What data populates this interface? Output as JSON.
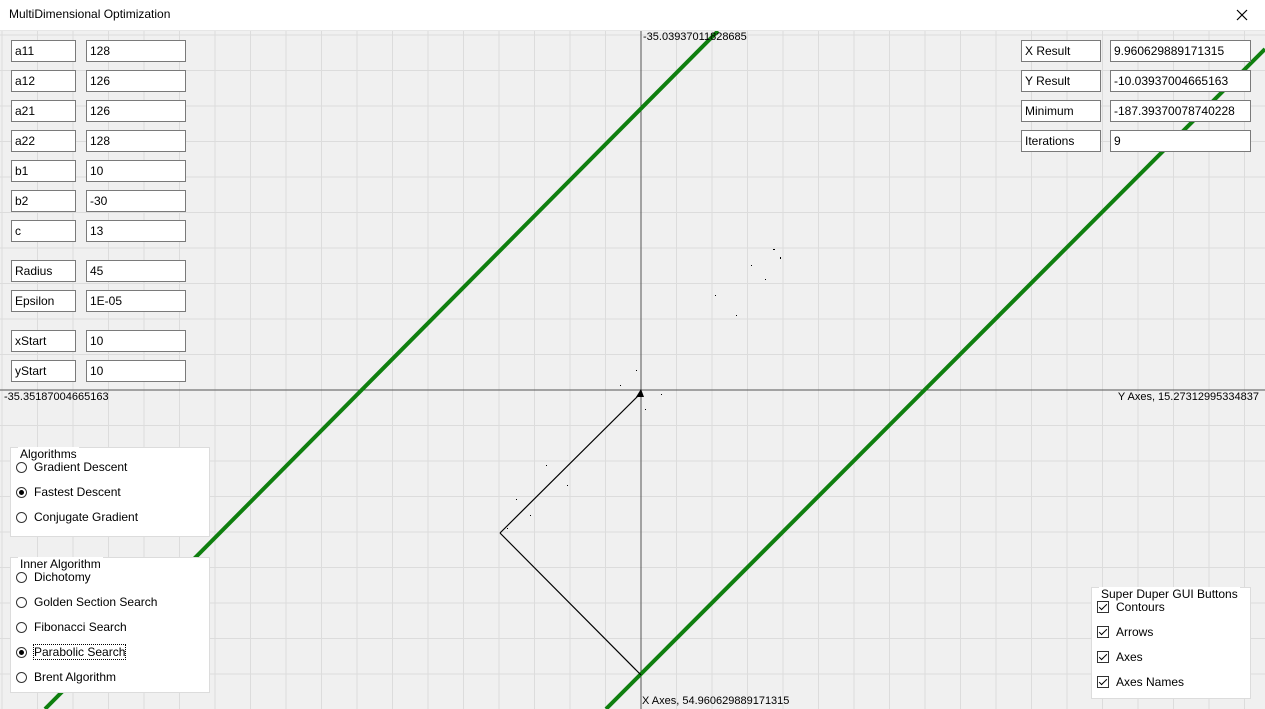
{
  "window": {
    "title": "MultiDimensional Optimization"
  },
  "axes": {
    "top_value": "-35.03937011828685",
    "left_value": "-35.35187004665163",
    "right_label": "Y Axes, 15.27312995334837",
    "bottom_label": "X Axes, 54.960629889171315"
  },
  "params": [
    {
      "label": "a11",
      "value": "128"
    },
    {
      "label": "a12",
      "value": "126"
    },
    {
      "label": "a21",
      "value": "126"
    },
    {
      "label": "a22",
      "value": "128"
    },
    {
      "label": "b1",
      "value": "10"
    },
    {
      "label": "b2",
      "value": "-30"
    },
    {
      "label": "c",
      "value": "13"
    },
    {
      "label": "Radius",
      "value": "45"
    },
    {
      "label": "Epsilon",
      "value": "1E-05"
    },
    {
      "label": "xStart",
      "value": "10"
    },
    {
      "label": "yStart",
      "value": "10"
    }
  ],
  "results": [
    {
      "label": "X Result",
      "value": "9.960629889171315"
    },
    {
      "label": "Y Result",
      "value": "-10.03937004665163"
    },
    {
      "label": "Minimum",
      "value": "-187.39370078740228"
    },
    {
      "label": "Iterations",
      "value": "9"
    }
  ],
  "algorithms": {
    "title": "Algorithms",
    "options": [
      "Gradient Descent",
      "Fastest Descent",
      "Conjugate Gradient"
    ],
    "selected": "Fastest Descent"
  },
  "inner_algorithm": {
    "title": "Inner Algorithm",
    "options": [
      "Dichotomy",
      "Golden Section Search",
      "Fibonacci Search",
      "Parabolic Search",
      "Brent Algorithm"
    ],
    "selected": "Parabolic Search"
  },
  "gui_buttons": {
    "title": "Super Duper GUI Buttons",
    "items": [
      {
        "label": "Contours",
        "checked": true
      },
      {
        "label": "Arrows",
        "checked": true
      },
      {
        "label": "Axes",
        "checked": true
      },
      {
        "label": "Axes Names",
        "checked": true
      }
    ]
  },
  "colors": {
    "contour": "#0f7f0f",
    "grid": "#dcdcdc",
    "background": "#f0f0f0"
  }
}
